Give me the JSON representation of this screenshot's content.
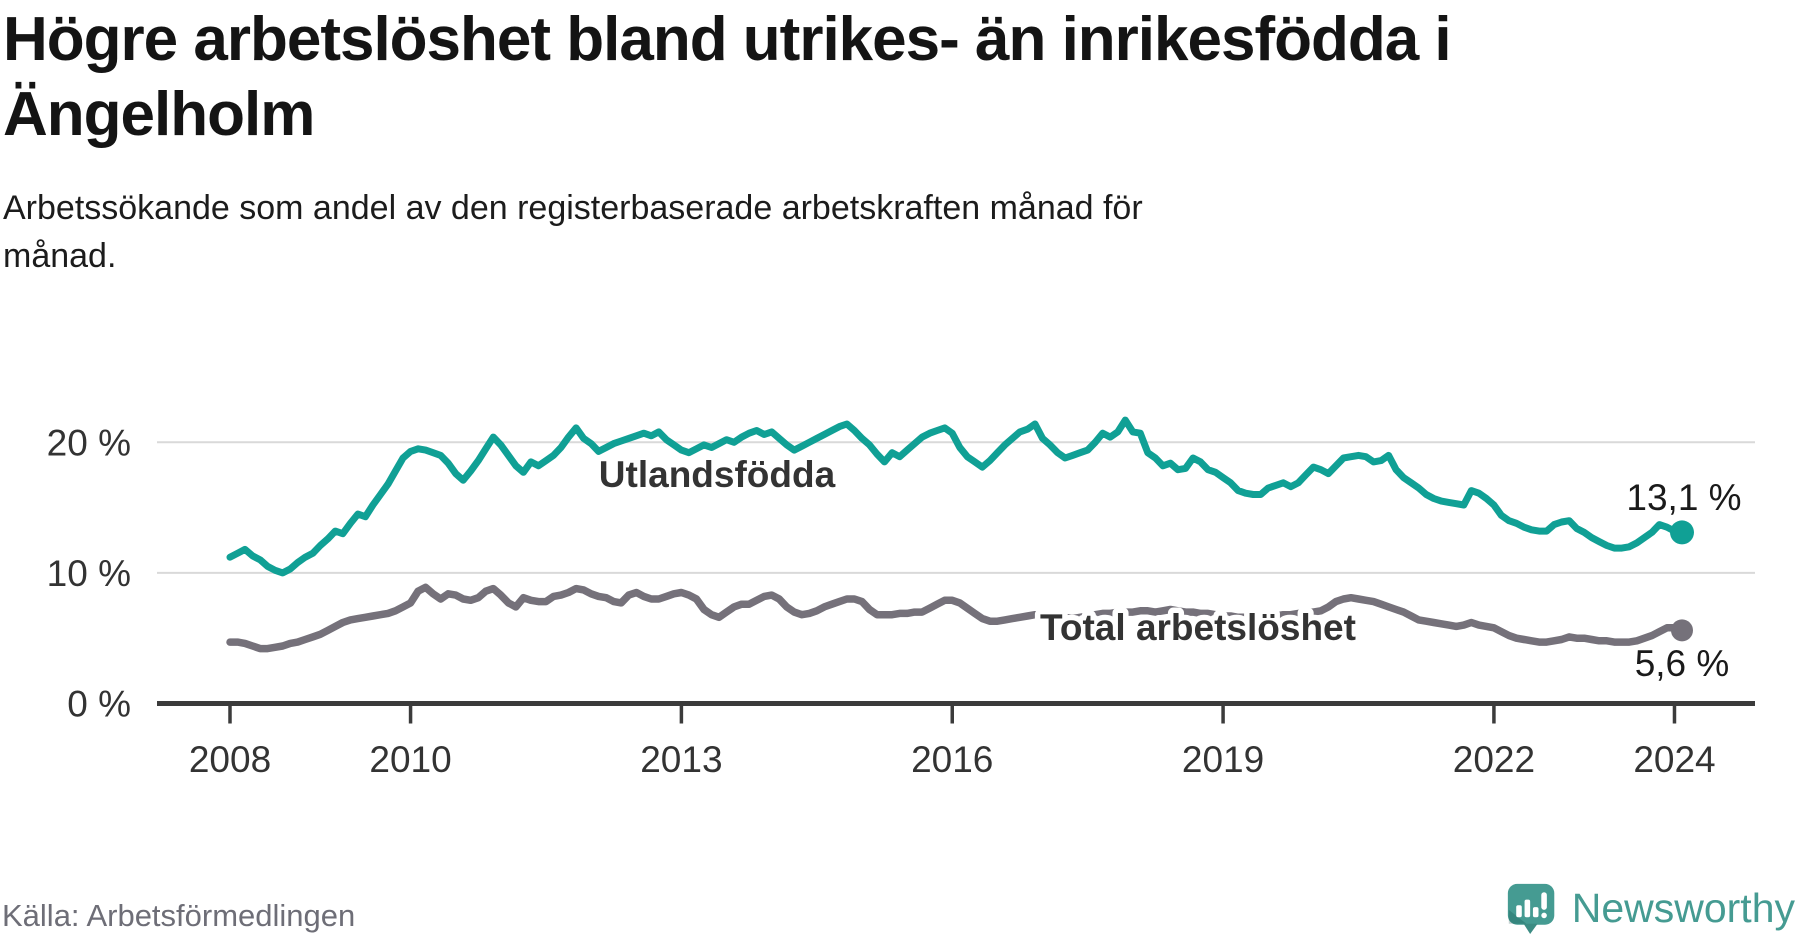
{
  "header": {
    "title_lines": [
      "Högre arbetslöshet bland utrikes- än inrikesfödda i",
      "Ängelholm"
    ],
    "subtitle_lines": [
      "Arbetssökande som andel av den registerbaserade arbetskraften månad för",
      "månad."
    ]
  },
  "footer": {
    "source": "Källa: Arbetsförmedlingen",
    "brand_name": "Newsworthy",
    "brand_icon": "bar-chart-speech-bubble-icon"
  },
  "colors": {
    "foreign_born_line": "#10a095",
    "total_line": "#75717a",
    "grid": "#d9d9d9",
    "axis": "#3b3b3b",
    "tick_text": "#333333",
    "annotation_text": "#1a1a1a",
    "brand_teal": "#459b92",
    "source_text": "#6e6e77"
  },
  "chart_data": {
    "type": "line",
    "title": "Högre arbetslöshet bland utrikes- än inrikesfödda i Ängelholm",
    "subtitle": "Arbetssökande som andel av den registerbaserade arbetskraften månad för månad.",
    "x_unit": "month",
    "x_range": [
      "2008-01",
      "2024-02"
    ],
    "y_unit": "%",
    "ylim": [
      0,
      23
    ],
    "grid": "horizontal",
    "legend_position": "inline-labels",
    "y_ticks": [
      {
        "value": 0,
        "label": "0 %"
      },
      {
        "value": 10,
        "label": "10 %"
      },
      {
        "value": 20,
        "label": "20 %"
      }
    ],
    "x_ticks": [
      {
        "year": 2008,
        "label": "2008"
      },
      {
        "year": 2010,
        "label": "2010"
      },
      {
        "year": 2013,
        "label": "2013"
      },
      {
        "year": 2016,
        "label": "2016"
      },
      {
        "year": 2019,
        "label": "2019"
      },
      {
        "year": 2022,
        "label": "2022"
      },
      {
        "year": 2024,
        "label": "2024"
      }
    ],
    "series": [
      {
        "name": "Utlandsfödda",
        "color": "#10a095",
        "end_value": 13.1,
        "end_label": "13,1 %",
        "values": [
          11.2,
          11.5,
          11.8,
          11.3,
          11.0,
          10.5,
          10.2,
          10.0,
          10.3,
          10.8,
          11.2,
          11.5,
          12.1,
          12.6,
          13.2,
          13.0,
          13.8,
          14.5,
          14.3,
          15.2,
          16.0,
          16.8,
          17.8,
          18.8,
          19.3,
          19.5,
          19.4,
          19.2,
          19.0,
          18.4,
          17.6,
          17.1,
          17.8,
          18.6,
          19.5,
          20.4,
          19.8,
          19.0,
          18.2,
          17.7,
          18.5,
          18.2,
          18.6,
          19.0,
          19.6,
          20.4,
          21.1,
          20.3,
          19.9,
          19.3,
          19.6,
          19.9,
          20.1,
          20.3,
          20.5,
          20.7,
          20.5,
          20.8,
          20.2,
          19.8,
          19.4,
          19.2,
          19.5,
          19.8,
          19.6,
          19.9,
          20.2,
          20.0,
          20.4,
          20.7,
          20.9,
          20.6,
          20.8,
          20.3,
          19.8,
          19.4,
          19.7,
          20.0,
          20.3,
          20.6,
          20.9,
          21.2,
          21.4,
          20.9,
          20.3,
          19.8,
          19.1,
          18.5,
          19.2,
          18.9,
          19.4,
          19.9,
          20.4,
          20.7,
          20.9,
          21.1,
          20.7,
          19.6,
          18.9,
          18.5,
          18.1,
          18.6,
          19.2,
          19.8,
          20.3,
          20.8,
          21.0,
          21.4,
          20.3,
          19.8,
          19.2,
          18.8,
          19.0,
          19.2,
          19.4,
          20.0,
          20.7,
          20.4,
          20.8,
          21.7,
          20.8,
          20.7,
          19.2,
          18.8,
          18.2,
          18.4,
          17.9,
          18.0,
          18.8,
          18.5,
          17.9,
          17.7,
          17.3,
          16.9,
          16.3,
          16.1,
          16.0,
          16.0,
          16.5,
          16.7,
          16.9,
          16.6,
          16.9,
          17.5,
          18.1,
          17.9,
          17.6,
          18.2,
          18.8,
          18.9,
          19.0,
          18.9,
          18.5,
          18.6,
          19.0,
          17.9,
          17.3,
          16.9,
          16.5,
          16.0,
          15.7,
          15.5,
          15.4,
          15.3,
          15.2,
          16.3,
          16.1,
          15.7,
          15.2,
          14.4,
          14.0,
          13.8,
          13.5,
          13.3,
          13.2,
          13.2,
          13.7,
          13.9,
          14.0,
          13.4,
          13.1,
          12.7,
          12.4,
          12.1,
          11.9,
          11.9,
          12.0,
          12.3,
          12.7,
          13.1,
          13.7,
          13.5,
          13.2,
          13.1
        ]
      },
      {
        "name": "Total arbetslöshet",
        "color": "#75717a",
        "end_value": 5.6,
        "end_label": "5,6 %",
        "values": [
          4.7,
          4.7,
          4.6,
          4.4,
          4.2,
          4.2,
          4.3,
          4.4,
          4.6,
          4.7,
          4.9,
          5.1,
          5.3,
          5.6,
          5.9,
          6.2,
          6.4,
          6.5,
          6.6,
          6.7,
          6.8,
          6.9,
          7.1,
          7.4,
          7.7,
          8.6,
          8.9,
          8.4,
          8.0,
          8.4,
          8.3,
          8.0,
          7.9,
          8.1,
          8.6,
          8.8,
          8.3,
          7.7,
          7.4,
          8.1,
          7.9,
          7.8,
          7.8,
          8.2,
          8.3,
          8.5,
          8.8,
          8.7,
          8.4,
          8.2,
          8.1,
          7.8,
          7.7,
          8.3,
          8.5,
          8.2,
          8.0,
          8.0,
          8.2,
          8.4,
          8.5,
          8.3,
          8.0,
          7.2,
          6.8,
          6.6,
          7.0,
          7.4,
          7.6,
          7.6,
          7.9,
          8.2,
          8.3,
          8.0,
          7.4,
          7.0,
          6.8,
          6.9,
          7.1,
          7.4,
          7.6,
          7.8,
          8.0,
          8.0,
          7.8,
          7.2,
          6.8,
          6.8,
          6.8,
          6.9,
          6.9,
          7.0,
          7.0,
          7.3,
          7.6,
          7.9,
          7.9,
          7.7,
          7.3,
          6.9,
          6.5,
          6.3,
          6.3,
          6.4,
          6.5,
          6.6,
          6.7,
          6.8,
          6.8,
          6.7,
          6.6,
          6.6,
          6.5,
          6.6,
          6.7,
          6.8,
          6.9,
          6.9,
          7.0,
          7.0,
          7.0,
          7.1,
          7.1,
          7.0,
          7.1,
          7.2,
          7.1,
          7.0,
          7.0,
          6.9,
          6.9,
          6.8,
          6.7,
          6.7,
          6.6,
          6.6,
          6.5,
          6.6,
          6.7,
          6.7,
          6.8,
          6.8,
          6.9,
          7.0,
          7.0,
          7.1,
          7.4,
          7.8,
          8.0,
          8.1,
          8.0,
          7.9,
          7.8,
          7.6,
          7.4,
          7.2,
          7.0,
          6.7,
          6.4,
          6.3,
          6.2,
          6.1,
          6.0,
          5.9,
          6.0,
          6.2,
          6.0,
          5.9,
          5.8,
          5.5,
          5.2,
          5.0,
          4.9,
          4.8,
          4.7,
          4.7,
          4.8,
          4.9,
          5.1,
          5.0,
          5.0,
          4.9,
          4.8,
          4.8,
          4.7,
          4.7,
          4.7,
          4.8,
          5.0,
          5.2,
          5.5,
          5.8,
          5.8,
          5.6
        ]
      }
    ]
  }
}
